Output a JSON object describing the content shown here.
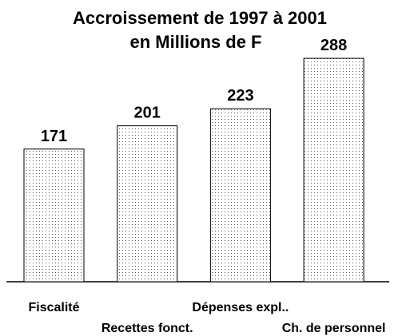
{
  "chart_data": {
    "type": "bar",
    "title": [
      "Accroissement de 1997 à 2001",
      "en Millions de F"
    ],
    "categories": [
      "Fiscalité",
      "Recettes fonct.",
      "Dépenses expl..",
      "Ch. de personnel"
    ],
    "values": [
      171,
      201,
      223,
      288
    ],
    "color": "#000000"
  }
}
